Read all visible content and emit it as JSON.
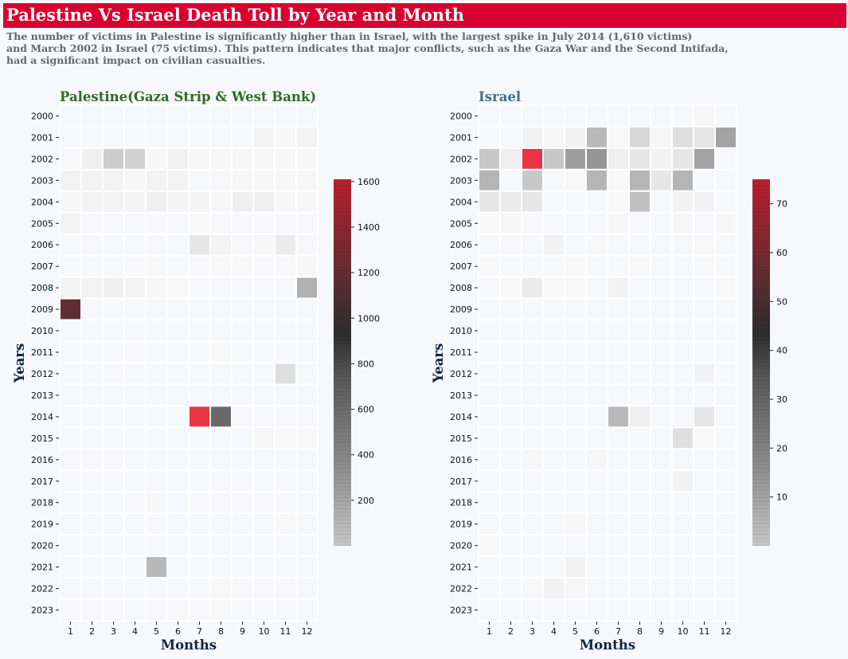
{
  "title": "Palestine Vs Israel Death Toll by Year and Month",
  "subtitle": {
    "line1": "The number of victims in Palestine is significantly higher than in Israel, with the largest spike in July 2014 (1,610 victims)",
    "line2": "and March 2002 in Israel (75 victims). This pattern indicates that major conflicts, such as the Gaza War and the Second Intifada,",
    "line3": "had a significant impact on civilian casualties."
  },
  "colors": {
    "banner": "#d9002f",
    "palestine_title": "#2e6b23",
    "israel_title": "#3f6e8c",
    "axis_label": "#0d2440"
  },
  "chart_data": [
    {
      "type": "heatmap",
      "title": "Palestine(Gaza Strip & West Bank)",
      "xlabel": "Months",
      "ylabel": "Years",
      "x": [
        1,
        2,
        3,
        4,
        5,
        6,
        7,
        8,
        9,
        10,
        11,
        12
      ],
      "y": [
        2000,
        2001,
        2002,
        2003,
        2004,
        2005,
        2006,
        2007,
        2008,
        2009,
        2010,
        2011,
        2012,
        2013,
        2014,
        2015,
        2016,
        2017,
        2018,
        2019,
        2020,
        2021,
        2022,
        2023
      ],
      "colorbar": {
        "min": 0,
        "max": 1610,
        "ticks": [
          200,
          400,
          600,
          800,
          1000,
          1200,
          1400,
          1600
        ]
      },
      "values": [
        [
          0,
          0,
          0,
          0,
          0,
          0,
          0,
          0,
          0,
          0,
          0,
          0
        ],
        [
          5,
          5,
          10,
          10,
          10,
          10,
          5,
          5,
          10,
          60,
          40,
          60
        ],
        [
          20,
          80,
          200,
          190,
          40,
          70,
          40,
          40,
          40,
          40,
          40,
          40
        ],
        [
          60,
          60,
          60,
          40,
          60,
          60,
          10,
          20,
          40,
          40,
          40,
          40
        ],
        [
          40,
          60,
          60,
          60,
          80,
          50,
          50,
          40,
          80,
          80,
          40,
          40
        ],
        [
          60,
          5,
          5,
          5,
          5,
          5,
          30,
          10,
          5,
          5,
          5,
          10
        ],
        [
          5,
          20,
          10,
          10,
          20,
          10,
          130,
          60,
          20,
          40,
          100,
          20
        ],
        [
          5,
          5,
          10,
          20,
          30,
          10,
          20,
          30,
          30,
          20,
          20,
          40
        ],
        [
          60,
          60,
          80,
          60,
          40,
          30,
          10,
          10,
          10,
          10,
          10,
          300
        ],
        [
          1120,
          10,
          10,
          5,
          5,
          5,
          5,
          5,
          5,
          5,
          5,
          5
        ],
        [
          5,
          5,
          5,
          5,
          5,
          10,
          5,
          5,
          5,
          5,
          5,
          5
        ],
        [
          5,
          5,
          10,
          20,
          5,
          5,
          5,
          30,
          5,
          5,
          5,
          5
        ],
        [
          5,
          5,
          20,
          5,
          3,
          10,
          5,
          5,
          5,
          5,
          150,
          5
        ],
        [
          5,
          3,
          5,
          5,
          3,
          5,
          5,
          5,
          5,
          5,
          5,
          5
        ],
        [
          5,
          5,
          5,
          3,
          5,
          5,
          1610,
          750,
          20,
          5,
          5,
          5
        ],
        [
          5,
          5,
          5,
          5,
          3,
          5,
          5,
          5,
          5,
          40,
          30,
          30
        ],
        [
          20,
          20,
          20,
          10,
          10,
          10,
          10,
          10,
          5,
          5,
          5,
          5
        ],
        [
          5,
          5,
          5,
          5,
          5,
          5,
          10,
          5,
          5,
          5,
          5,
          5
        ],
        [
          5,
          5,
          10,
          20,
          40,
          10,
          20,
          20,
          20,
          20,
          20,
          10
        ],
        [
          5,
          5,
          10,
          5,
          20,
          5,
          5,
          5,
          5,
          10,
          30,
          5
        ],
        [
          5,
          5,
          5,
          5,
          5,
          5,
          5,
          5,
          3,
          5,
          5,
          5
        ],
        [
          5,
          5,
          5,
          5,
          260,
          5,
          5,
          5,
          5,
          5,
          5,
          5
        ],
        [
          5,
          5,
          5,
          10,
          5,
          10,
          10,
          30,
          20,
          20,
          20,
          10
        ],
        [
          20,
          20,
          20,
          10,
          20,
          20,
          20,
          20,
          10,
          10,
          10,
          10
        ]
      ]
    },
    {
      "type": "heatmap",
      "title": "Israel",
      "xlabel": "Months",
      "ylabel": "Years",
      "x": [
        1,
        2,
        3,
        4,
        5,
        6,
        7,
        8,
        9,
        10,
        11,
        12
      ],
      "y": [
        2000,
        2001,
        2002,
        2003,
        2004,
        2005,
        2006,
        2007,
        2008,
        2009,
        2010,
        2011,
        2012,
        2013,
        2014,
        2015,
        2016,
        2017,
        2018,
        2019,
        2020,
        2021,
        2022,
        2023
      ],
      "colorbar": {
        "min": 0,
        "max": 75,
        "ticks": [
          10,
          20,
          30,
          40,
          50,
          60,
          70
        ]
      },
      "values": [
        [
          0,
          0,
          0,
          0,
          0,
          0,
          0,
          0,
          0,
          0,
          2,
          0
        ],
        [
          0,
          0,
          3,
          2,
          3,
          12,
          1,
          8,
          2,
          7,
          6,
          17
        ],
        [
          10,
          4,
          75,
          10,
          18,
          20,
          4,
          6,
          3,
          6,
          17,
          0
        ],
        [
          13,
          0,
          10,
          0,
          1,
          13,
          1,
          13,
          6,
          13,
          0,
          0
        ],
        [
          6,
          5,
          6,
          0,
          0,
          0,
          1,
          11,
          0,
          3,
          3,
          0
        ],
        [
          1,
          2,
          0,
          0,
          0,
          0,
          2,
          0,
          0,
          2,
          0,
          2
        ],
        [
          0,
          1,
          0,
          3,
          0,
          1,
          0,
          0,
          0,
          0,
          1,
          0
        ],
        [
          1,
          0,
          0,
          0,
          1,
          0,
          0,
          1,
          0,
          0,
          1,
          0
        ],
        [
          0,
          1,
          5,
          1,
          1,
          0,
          3,
          0,
          0,
          0,
          0,
          1
        ],
        [
          0,
          0,
          0,
          0,
          0,
          0,
          0,
          0,
          0,
          0,
          0,
          0
        ],
        [
          0,
          0,
          0,
          0,
          0,
          0,
          0,
          0,
          0,
          0,
          0,
          0
        ],
        [
          0,
          0,
          0,
          0,
          0,
          0,
          0,
          0,
          0,
          0,
          0,
          0
        ],
        [
          0,
          0,
          0,
          0,
          0,
          0,
          0,
          0,
          0,
          0,
          3,
          0
        ],
        [
          0,
          0,
          0,
          0,
          0,
          0,
          0,
          0,
          0,
          0,
          0,
          0
        ],
        [
          0,
          0,
          0,
          0,
          0,
          0,
          12,
          4,
          0,
          0,
          6,
          0
        ],
        [
          0,
          0,
          0,
          0,
          0,
          0,
          0,
          0,
          0,
          7,
          1,
          0
        ],
        [
          0,
          0,
          2,
          0,
          0,
          2,
          0,
          0,
          0,
          0,
          0,
          0
        ],
        [
          0,
          0,
          0,
          0,
          0,
          0,
          0,
          0,
          0,
          3,
          0,
          0
        ],
        [
          0,
          0,
          0,
          0,
          0,
          0,
          0,
          0,
          0,
          0,
          0,
          0
        ],
        [
          0,
          0,
          0,
          0,
          2,
          0,
          0,
          0,
          0,
          0,
          0,
          0
        ],
        [
          1,
          0,
          0,
          0,
          0,
          0,
          0,
          0,
          0,
          0,
          0,
          0
        ],
        [
          0,
          0,
          0,
          0,
          3,
          0,
          0,
          0,
          0,
          0,
          0,
          0
        ],
        [
          0,
          0,
          1,
          3,
          2,
          0,
          0,
          0,
          0,
          0,
          0,
          0
        ],
        [
          0,
          0,
          0,
          0,
          0,
          0,
          0,
          0,
          0,
          0,
          0,
          0
        ]
      ]
    }
  ]
}
